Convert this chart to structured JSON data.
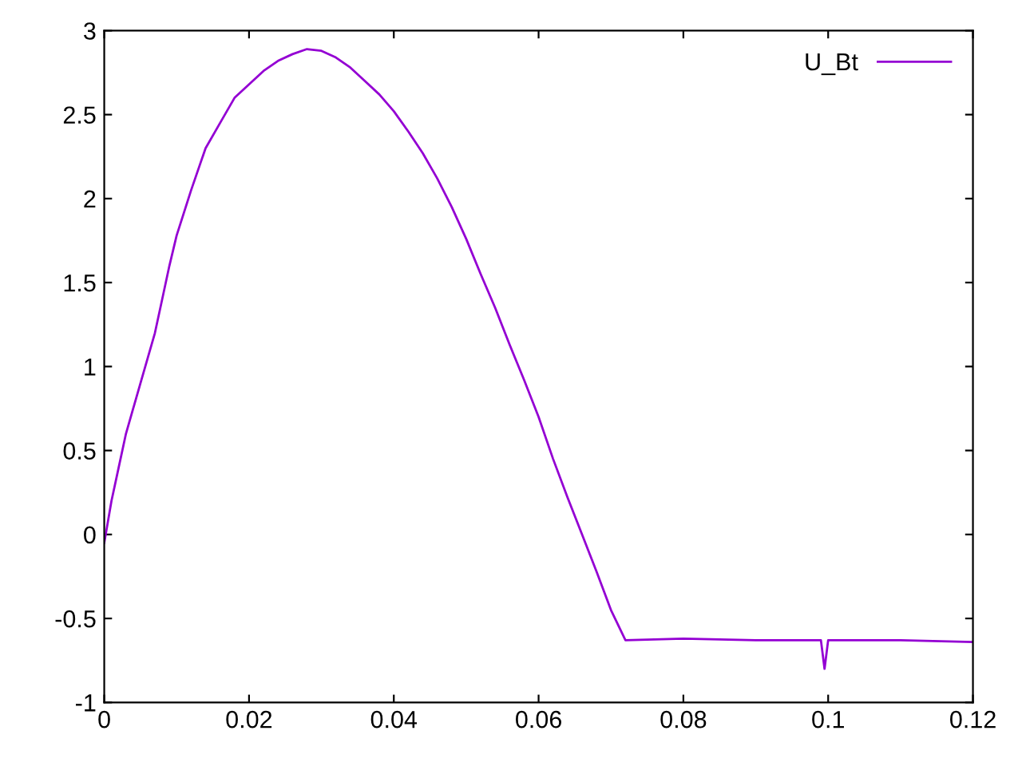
{
  "chart_data": {
    "type": "line",
    "x": [
      0,
      0.001,
      0.002,
      0.003,
      0.004,
      0.005,
      0.006,
      0.007,
      0.008,
      0.009,
      0.01,
      0.012,
      0.014,
      0.016,
      0.018,
      0.02,
      0.022,
      0.024,
      0.026,
      0.028,
      0.03,
      0.032,
      0.034,
      0.036,
      0.038,
      0.04,
      0.042,
      0.044,
      0.046,
      0.048,
      0.05,
      0.052,
      0.054,
      0.056,
      0.058,
      0.06,
      0.062,
      0.064,
      0.066,
      0.068,
      0.07,
      0.072,
      0.08,
      0.09,
      0.099,
      0.0995,
      0.1,
      0.11,
      0.12
    ],
    "series": [
      {
        "name": "U_Bt",
        "color": "#9400d3",
        "values": [
          -0.05,
          0.2,
          0.4,
          0.6,
          0.75,
          0.9,
          1.05,
          1.2,
          1.4,
          1.6,
          1.78,
          2.05,
          2.3,
          2.45,
          2.6,
          2.68,
          2.76,
          2.82,
          2.86,
          2.89,
          2.88,
          2.84,
          2.78,
          2.7,
          2.62,
          2.52,
          2.4,
          2.27,
          2.12,
          1.95,
          1.76,
          1.55,
          1.35,
          1.13,
          0.92,
          0.7,
          0.45,
          0.22,
          0.0,
          -0.22,
          -0.45,
          -0.63,
          -0.62,
          -0.63,
          -0.63,
          -0.8,
          -0.63,
          -0.63,
          -0.64
        ]
      }
    ],
    "xlim": [
      0,
      0.12
    ],
    "ylim": [
      -1,
      3
    ],
    "xticks": [
      0,
      0.02,
      0.04,
      0.06,
      0.08,
      0.1,
      0.12
    ],
    "yticks": [
      {
        "value": -1,
        "label": "-1"
      },
      {
        "value": -0.5,
        "label": "-0.5"
      },
      0,
      0.5,
      1,
      1.5,
      2,
      2.5,
      3
    ],
    "legend": "top right",
    "line_style": "solid",
    "marker": "none"
  }
}
